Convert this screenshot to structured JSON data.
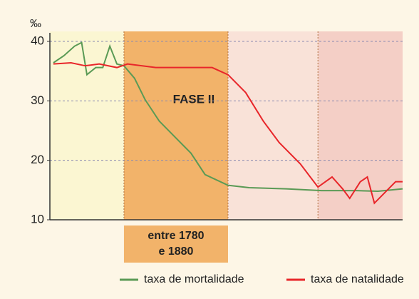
{
  "chart_data": {
    "type": "line",
    "y_label": "‰",
    "xlim": [
      0,
      100
    ],
    "ylim": [
      10,
      40
    ],
    "yticks": [
      10,
      20,
      30,
      40
    ],
    "grid": true,
    "phases": [
      {
        "start": 0,
        "end": 21,
        "color": "#fbf6d2"
      },
      {
        "start": 21,
        "end": 50.5,
        "color": "#f2b36a",
        "label": "FASE II"
      },
      {
        "start": 50.5,
        "end": 76,
        "color": "#f9e2d8"
      },
      {
        "start": 76,
        "end": 100,
        "color": "#f4cfc6"
      }
    ],
    "annotation": [
      "entre 1780",
      "e 1880"
    ],
    "series": [
      {
        "name": "taxa de mortalidade",
        "color": "#5a9a55",
        "x": [
          1,
          4,
          7,
          9,
          10.5,
          13,
          15,
          17,
          19,
          21,
          24,
          27,
          31,
          36,
          40,
          44,
          50.5,
          56.5,
          67,
          77,
          87,
          93,
          100
        ],
        "values": [
          36.4,
          37.6,
          39.2,
          39.8,
          34.4,
          35.6,
          35.6,
          39.2,
          36.2,
          35.9,
          33.8,
          30.2,
          26.6,
          23.6,
          21.2,
          17.6,
          15.8,
          15.4,
          15.2,
          14.9,
          14.9,
          14.8,
          15.2
        ]
      },
      {
        "name": "taxa de natalidade",
        "color": "#e8262a",
        "x": [
          1,
          6,
          10,
          14,
          19,
          22,
          30,
          38,
          46,
          50.5,
          55.5,
          60.5,
          65,
          71,
          76,
          80,
          83,
          85,
          88,
          90,
          92,
          95,
          98,
          100
        ],
        "values": [
          36.2,
          36.4,
          35.9,
          36.2,
          35.6,
          36.2,
          35.6,
          35.6,
          35.6,
          34.4,
          31.4,
          26.6,
          23,
          19.4,
          15.5,
          17.2,
          15.2,
          13.6,
          16.4,
          17.2,
          12.8,
          14.6,
          16.4,
          16.4
        ]
      }
    ]
  }
}
